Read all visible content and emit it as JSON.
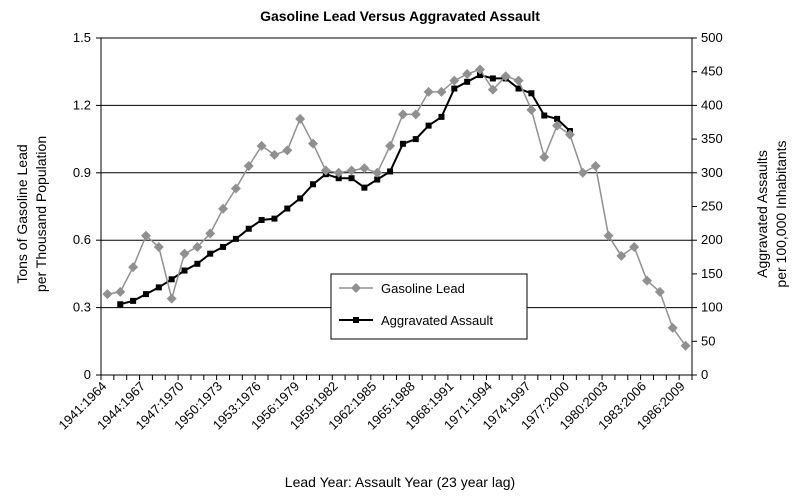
{
  "chart_data": {
    "type": "line",
    "title": "Gasoline Lead Versus Aggravated Assault",
    "xlabel": "Lead Year: Assault Year (23 year lag)",
    "ylabel_left": [
      "Tons of Gasoline Lead",
      "per Thousand Population"
    ],
    "ylabel_right": [
      "Aggravated Assaults",
      "per 100,000 Inhabitants"
    ],
    "x_tick_labels": [
      "1941:1964",
      "1944:1967",
      "1947:1970",
      "1950:1973",
      "1953:1976",
      "1956:1979",
      "1959:1982",
      "1962:1985",
      "1965:1988",
      "1968:1991",
      "1971:1994",
      "1974:1997",
      "1977:2000",
      "1980:2003",
      "1983:2006",
      "1986:2009"
    ],
    "x_lead_years": [
      1941,
      1942,
      1943,
      1944,
      1945,
      1946,
      1947,
      1948,
      1949,
      1950,
      1951,
      1952,
      1953,
      1954,
      1955,
      1956,
      1957,
      1958,
      1959,
      1960,
      1961,
      1962,
      1963,
      1964,
      1965,
      1966,
      1967,
      1968,
      1969,
      1970,
      1971,
      1972,
      1973,
      1974,
      1975,
      1976,
      1977,
      1978,
      1979,
      1980,
      1981,
      1982,
      1983,
      1984,
      1985,
      1986
    ],
    "ylim_left": [
      0,
      1.5
    ],
    "ylim_right": [
      0,
      500
    ],
    "yticks_left": [
      "0",
      "0.3",
      "0.6",
      "0.9",
      "1.2",
      "1.5"
    ],
    "yticks_right": [
      "0",
      "50",
      "100",
      "150",
      "200",
      "250",
      "300",
      "350",
      "400",
      "450",
      "500"
    ],
    "gridlines": "horizontal at left-axis ticks",
    "legend_position": "center",
    "series": [
      {
        "name": "Gasoline Lead",
        "axis": "left",
        "color": "#909090",
        "marker": "diamond",
        "values": [
          0.36,
          0.37,
          0.48,
          0.62,
          0.57,
          0.34,
          0.54,
          0.57,
          0.63,
          0.74,
          0.83,
          0.93,
          1.02,
          0.98,
          1.0,
          1.14,
          1.03,
          0.91,
          0.9,
          0.91,
          0.92,
          0.9,
          1.02,
          1.16,
          1.16,
          1.26,
          1.26,
          1.31,
          1.34,
          1.36,
          1.27,
          1.33,
          1.31,
          1.18,
          0.97,
          1.11,
          1.07,
          0.9,
          0.93,
          0.62,
          0.53,
          0.57,
          0.42,
          0.37,
          0.21,
          0.13
        ]
      },
      {
        "name": "Aggravated Assault",
        "axis": "right",
        "color": "#000000",
        "marker": "square",
        "start_index": 1,
        "values": [
          105,
          110,
          120,
          130,
          142,
          155,
          165,
          180,
          190,
          202,
          217,
          230,
          232,
          247,
          262,
          283,
          298,
          292,
          292,
          278,
          290,
          302,
          343,
          350,
          370,
          383,
          425,
          435,
          445,
          440,
          440,
          425,
          418,
          385,
          380,
          362
        ]
      }
    ]
  }
}
